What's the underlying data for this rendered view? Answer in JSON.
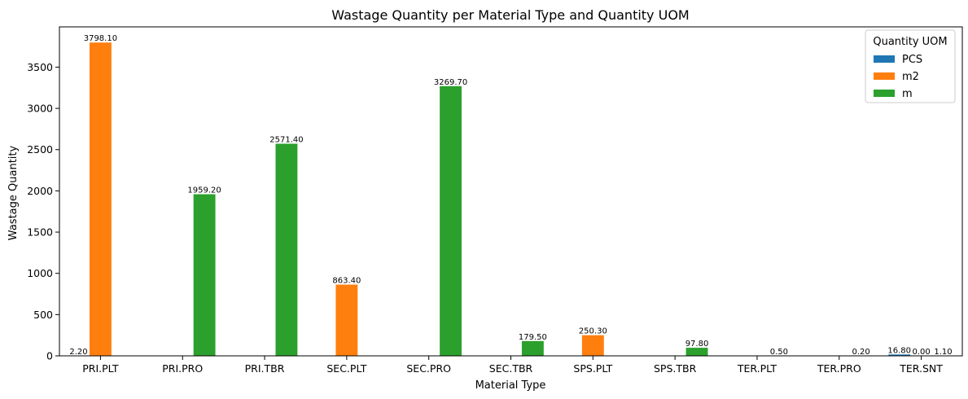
{
  "chart_data": {
    "type": "bar",
    "title": "Wastage Quantity per Material Type and Quantity UOM",
    "xlabel": "Material Type",
    "ylabel": "Wastage Quantity",
    "ylim": [
      0,
      3988
    ],
    "yticks": [
      0,
      500,
      1000,
      1500,
      2000,
      2500,
      3000,
      3500
    ],
    "categories": [
      "PRI.PLT",
      "PRI.PRO",
      "PRI.TBR",
      "SEC.PLT",
      "SEC.PRO",
      "SEC.TBR",
      "SPS.PLT",
      "SPS.TBR",
      "TER.PLT",
      "TER.PRO",
      "TER.SNT"
    ],
    "legend": {
      "title": "Quantity UOM",
      "position": "top-right"
    },
    "series": [
      {
        "name": "PCS",
        "color": "#1f77b4",
        "values": [
          2.2,
          null,
          null,
          null,
          null,
          null,
          null,
          null,
          null,
          null,
          16.8
        ],
        "labels": [
          "2.20",
          null,
          null,
          null,
          null,
          null,
          null,
          null,
          null,
          null,
          "16.80"
        ]
      },
      {
        "name": "m2",
        "color": "#ff7f0e",
        "values": [
          3798.1,
          null,
          null,
          863.4,
          null,
          null,
          250.3,
          null,
          null,
          null,
          0.0
        ],
        "labels": [
          "3798.10",
          null,
          null,
          "863.40",
          null,
          null,
          "250.30",
          null,
          null,
          null,
          "0.00"
        ]
      },
      {
        "name": "m",
        "color": "#2ca02c",
        "values": [
          null,
          1959.2,
          2571.4,
          null,
          3269.7,
          179.5,
          null,
          97.8,
          0.5,
          0.2,
          1.1
        ],
        "labels": [
          null,
          "1959.20",
          "2571.40",
          null,
          "3269.70",
          "179.50",
          null,
          "97.80",
          "0.50",
          "0.20",
          "1.10"
        ]
      }
    ]
  }
}
